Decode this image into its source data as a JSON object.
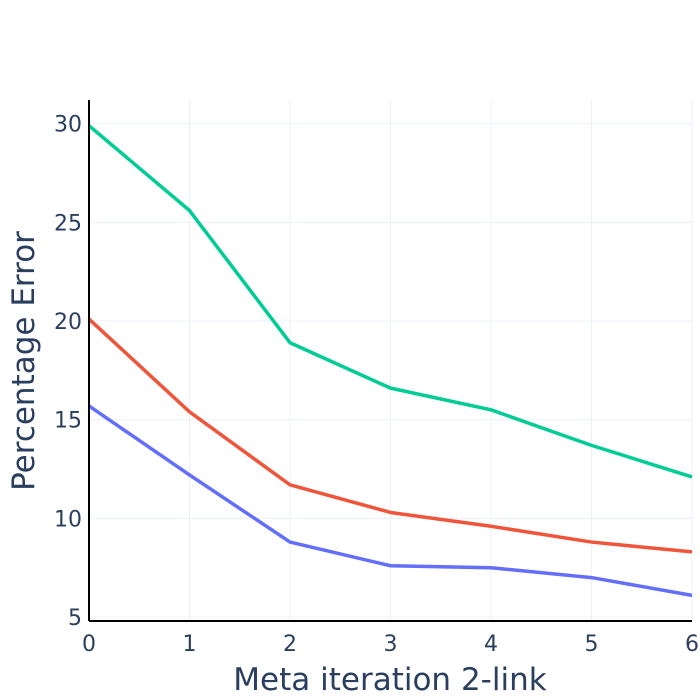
{
  "chart_data": {
    "type": "line",
    "title": "",
    "xlabel": "Meta iteration 2-link",
    "ylabel": "Percentage Error",
    "x": [
      0,
      1,
      2,
      3,
      4,
      5,
      6
    ],
    "xticks": [
      "0",
      "1",
      "2",
      "3",
      "4",
      "5",
      "6"
    ],
    "yticks": [
      "5",
      "10",
      "15",
      "20",
      "25",
      "30"
    ],
    "ytick_values": [
      5,
      10,
      15,
      20,
      25,
      30
    ],
    "xlim": [
      0,
      6
    ],
    "ylim": [
      4.8,
      31.2
    ],
    "grid": true,
    "legend": "none",
    "series": [
      {
        "color": "#00cc96",
        "values": [
          29.9,
          25.6,
          18.9,
          16.6,
          15.5,
          13.7,
          12.1
        ]
      },
      {
        "color": "#ef553b",
        "values": [
          20.1,
          15.4,
          11.7,
          10.3,
          9.6,
          8.8,
          8.3
        ]
      },
      {
        "color": "#636efa",
        "values": [
          15.7,
          12.2,
          8.8,
          7.6,
          7.5,
          7.0,
          6.1
        ]
      }
    ]
  }
}
